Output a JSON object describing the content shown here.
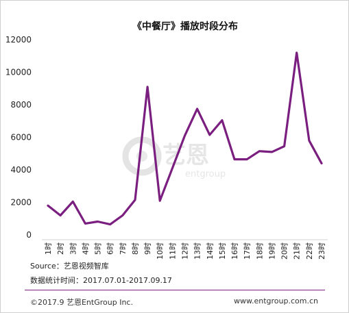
{
  "chart_data": {
    "type": "line",
    "title": "《中餐厅》播放时段分布",
    "categories": [
      "1时",
      "2时",
      "3时",
      "4时",
      "5时",
      "6时",
      "7时",
      "8时",
      "9时",
      "10时",
      "11时",
      "12时",
      "13时",
      "14时",
      "15时",
      "16时",
      "17时",
      "18时",
      "19时",
      "20时",
      "21时",
      "22时",
      "23时"
    ],
    "values": [
      1800,
      1200,
      2050,
      700,
      820,
      650,
      1200,
      2150,
      9100,
      2100,
      4100,
      6100,
      7750,
      6150,
      7050,
      4650,
      4650,
      5150,
      5100,
      5450,
      11200,
      5800,
      4400
    ],
    "yticks": [
      "0",
      "2000",
      "4000",
      "6000",
      "8000",
      "10000",
      "12000"
    ],
    "ylim": [
      0,
      12000
    ],
    "line_color": "#7a1f7f",
    "grid": false
  },
  "watermark": {
    "text": "艺恩",
    "sub": "entgroup"
  },
  "source_text": "Source：艺恩视频智库",
  "date_text": "数据统计时间：2017.07.01-2017.09.17",
  "copyright_text": "©2017.9 艺恩EntGroup Inc.",
  "website_text": "www.entgroup.com.cn",
  "divider_color": "#7a1f7f"
}
